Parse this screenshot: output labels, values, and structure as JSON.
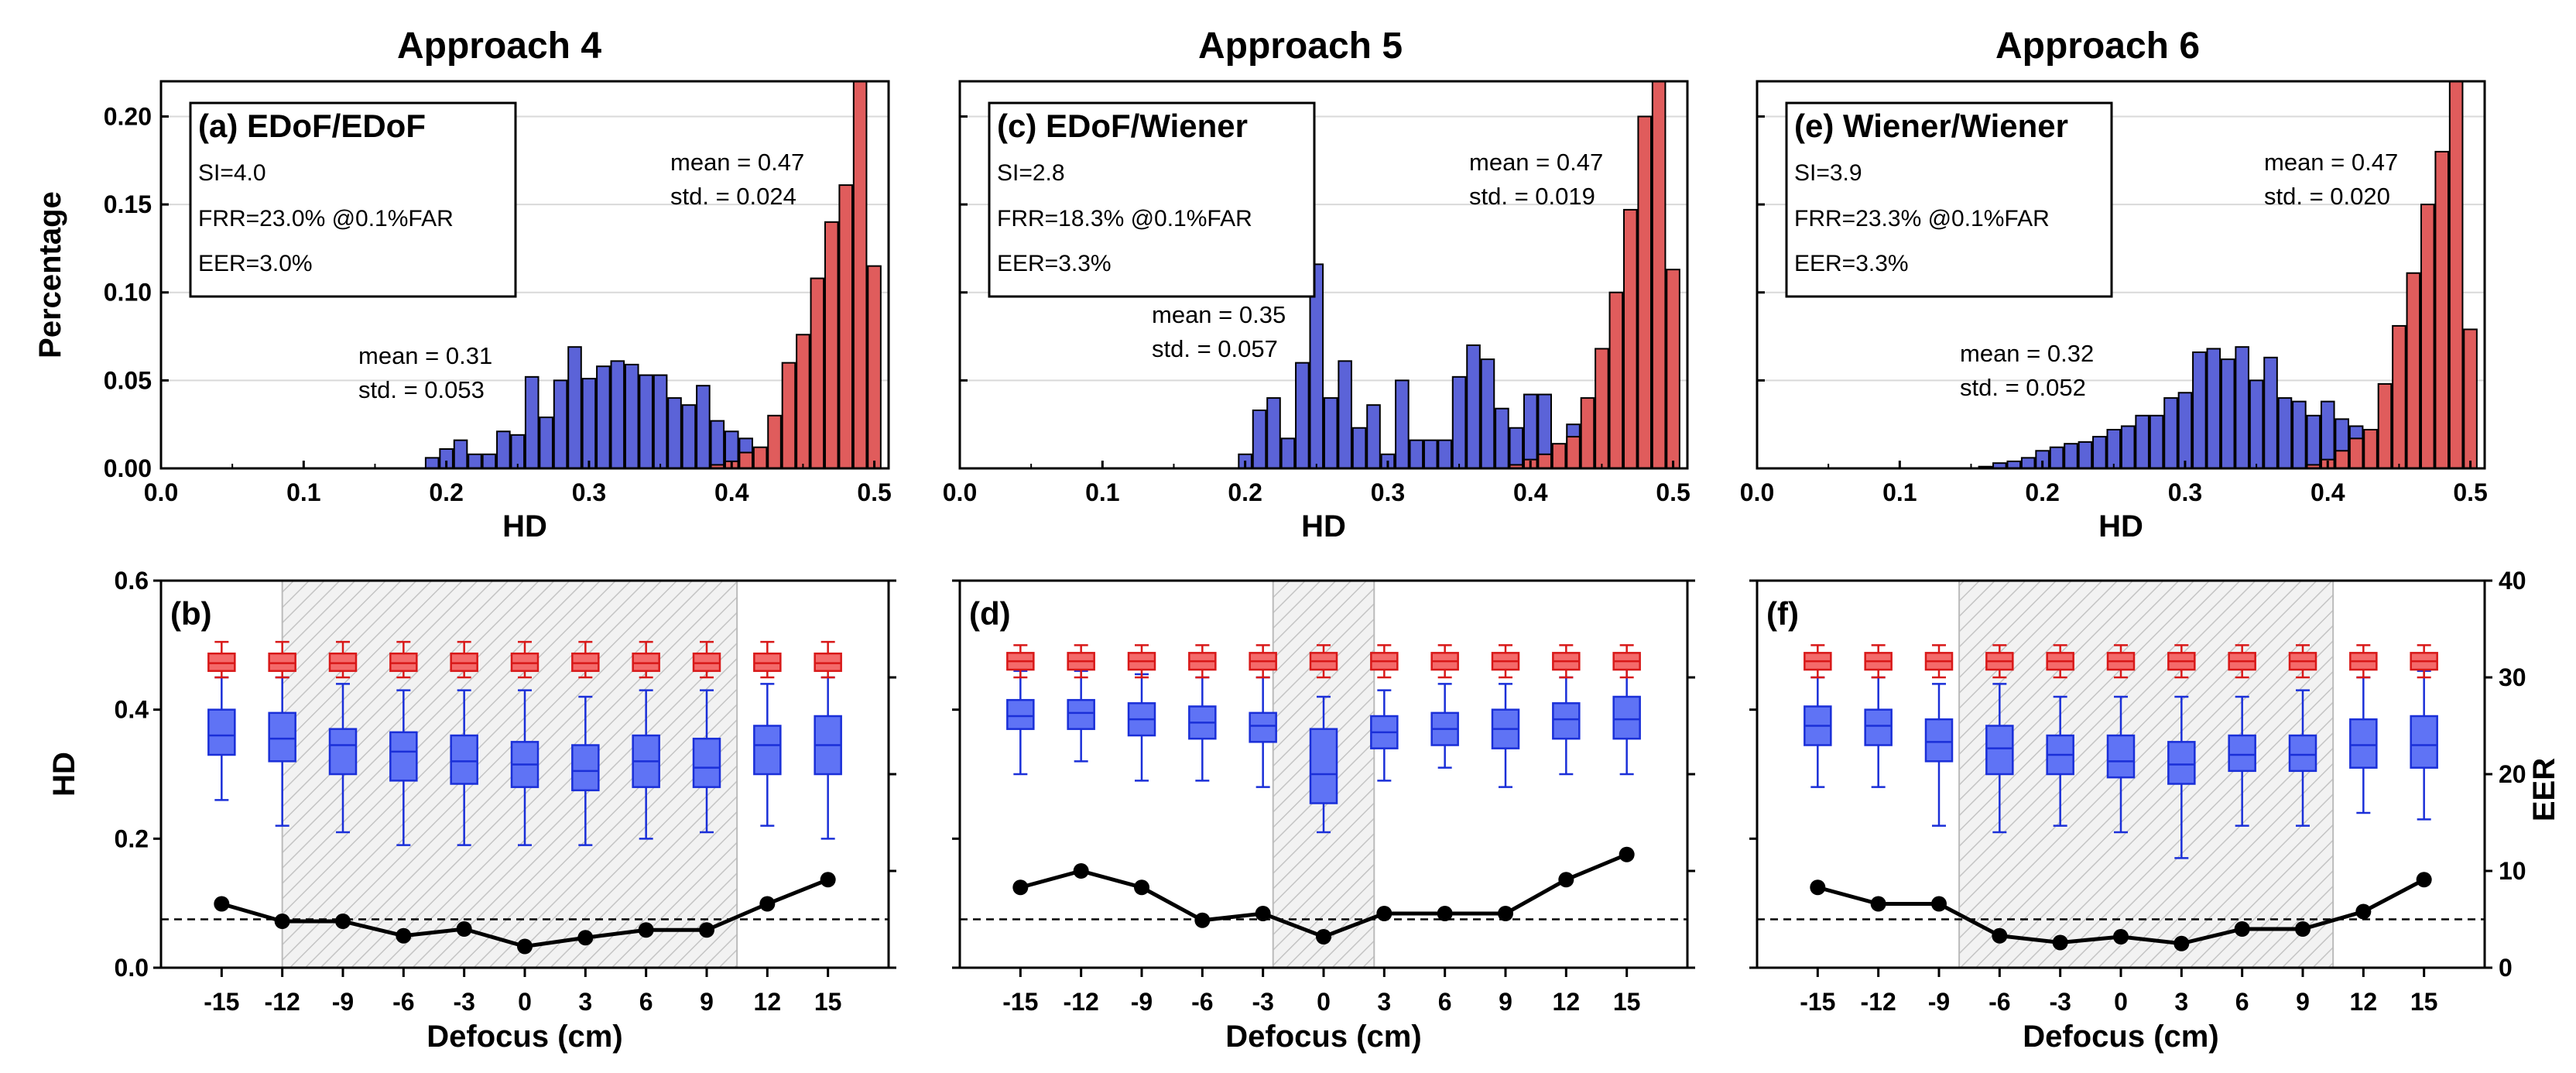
{
  "colors": {
    "genuine": "#5b63d8",
    "impostor": "#e05c5c",
    "box_blue": "#4b5ef0",
    "box_red": "#f04848",
    "line": "#000000"
  },
  "chart_data": [
    {
      "type": "bar",
      "id": "p1",
      "title": "Approach 4",
      "panel_label": "(a) EDoF/EDoF",
      "box_lines": [
        "SI=4.0",
        "FRR=23.0% @0.1%FAR",
        "EER=3.0%"
      ],
      "xlabel": "HD",
      "ylabel": "Percentage",
      "xlim": [
        0,
        0.51
      ],
      "ylim": [
        0,
        0.22
      ],
      "xticks": [
        "0.0",
        "0.1",
        "0.2",
        "0.3",
        "0.4",
        "0.5"
      ],
      "yticks": [
        "0.00",
        "0.05",
        "0.10",
        "0.15",
        "0.20"
      ],
      "genuine_stats": [
        "mean = 0.31",
        "std. = 0.053"
      ],
      "impostor_stats": [
        "mean = 0.47",
        "std. = 0.024"
      ],
      "genuine": {
        "x": [
          0.19,
          0.2,
          0.21,
          0.22,
          0.23,
          0.24,
          0.25,
          0.26,
          0.27,
          0.28,
          0.29,
          0.3,
          0.31,
          0.32,
          0.33,
          0.34,
          0.35,
          0.36,
          0.37,
          0.38,
          0.39,
          0.4,
          0.41,
          0.42,
          0.43
        ],
        "values": [
          0.006,
          0.011,
          0.016,
          0.008,
          0.008,
          0.021,
          0.019,
          0.052,
          0.029,
          0.05,
          0.069,
          0.051,
          0.058,
          0.061,
          0.059,
          0.053,
          0.053,
          0.04,
          0.036,
          0.047,
          0.027,
          0.021,
          0.017,
          0.006,
          0.002
        ]
      },
      "impostor": {
        "x": [
          0.39,
          0.4,
          0.41,
          0.42,
          0.43,
          0.44,
          0.45,
          0.46,
          0.47,
          0.48,
          0.49,
          0.5
        ],
        "values": [
          0.002,
          0.004,
          0.009,
          0.012,
          0.03,
          0.06,
          0.076,
          0.108,
          0.14,
          0.161,
          0.22,
          0.115
        ]
      }
    },
    {
      "type": "bar",
      "id": "p2",
      "title": "Approach 5",
      "panel_label": "(c) EDoF/Wiener",
      "box_lines": [
        "SI=2.8",
        "FRR=18.3% @0.1%FAR",
        "EER=3.3%"
      ],
      "xlabel": "HD",
      "ylabel": "",
      "xlim": [
        0,
        0.51
      ],
      "ylim": [
        0,
        0.22
      ],
      "xticks": [
        "0.0",
        "0.1",
        "0.2",
        "0.3",
        "0.4",
        "0.5"
      ],
      "yticks": [],
      "genuine_stats": [
        "mean = 0.35",
        "std. = 0.057"
      ],
      "impostor_stats": [
        "mean = 0.47",
        "std. = 0.019"
      ],
      "genuine": {
        "x": [
          0.2,
          0.21,
          0.22,
          0.23,
          0.24,
          0.25,
          0.26,
          0.27,
          0.28,
          0.29,
          0.3,
          0.31,
          0.32,
          0.33,
          0.34,
          0.35,
          0.36,
          0.37,
          0.38,
          0.39,
          0.4,
          0.41,
          0.42,
          0.43,
          0.44
        ],
        "values": [
          0.008,
          0.033,
          0.04,
          0.017,
          0.06,
          0.116,
          0.04,
          0.061,
          0.023,
          0.036,
          0.008,
          0.05,
          0.016,
          0.016,
          0.016,
          0.052,
          0.07,
          0.062,
          0.034,
          0.023,
          0.042,
          0.042,
          0.012,
          0.025,
          0.015
        ]
      },
      "impostor": {
        "x": [
          0.39,
          0.4,
          0.41,
          0.42,
          0.43,
          0.44,
          0.45,
          0.46,
          0.47,
          0.48,
          0.49,
          0.5
        ],
        "values": [
          0.002,
          0.005,
          0.008,
          0.014,
          0.018,
          0.04,
          0.068,
          0.1,
          0.147,
          0.2,
          0.22,
          0.113
        ]
      }
    },
    {
      "type": "bar",
      "id": "p3",
      "title": "Approach 6",
      "panel_label": "(e) Wiener/Wiener",
      "box_lines": [
        "SI=3.9",
        "FRR=23.3% @0.1%FAR",
        "EER=3.3%"
      ],
      "xlabel": "HD",
      "ylabel": "",
      "xlim": [
        0,
        0.51
      ],
      "ylim": [
        0,
        0.22
      ],
      "xticks": [
        "0.0",
        "0.1",
        "0.2",
        "0.3",
        "0.4",
        "0.5"
      ],
      "yticks": [],
      "genuine_stats": [
        "mean = 0.32",
        "std. = 0.052"
      ],
      "impostor_stats": [
        "mean = 0.47",
        "std. = 0.020"
      ],
      "genuine": {
        "x": [
          0.16,
          0.17,
          0.18,
          0.19,
          0.2,
          0.21,
          0.22,
          0.23,
          0.24,
          0.25,
          0.26,
          0.27,
          0.28,
          0.29,
          0.3,
          0.31,
          0.32,
          0.33,
          0.34,
          0.35,
          0.36,
          0.37,
          0.38,
          0.39,
          0.4,
          0.41,
          0.42,
          0.43,
          0.44
        ],
        "values": [
          0.001,
          0.003,
          0.004,
          0.006,
          0.01,
          0.012,
          0.014,
          0.015,
          0.018,
          0.022,
          0.024,
          0.03,
          0.03,
          0.04,
          0.043,
          0.066,
          0.068,
          0.062,
          0.069,
          0.05,
          0.063,
          0.04,
          0.038,
          0.03,
          0.038,
          0.028,
          0.024,
          0.016,
          0.006
        ]
      },
      "impostor": {
        "x": [
          0.39,
          0.4,
          0.41,
          0.42,
          0.43,
          0.44,
          0.45,
          0.46,
          0.47,
          0.48,
          0.49,
          0.5
        ],
        "values": [
          0.002,
          0.005,
          0.01,
          0.017,
          0.022,
          0.048,
          0.081,
          0.111,
          0.15,
          0.18,
          0.22,
          0.079
        ]
      }
    },
    {
      "type": "box",
      "id": "p4",
      "panel_label": "(b)",
      "xlabel": "Defocus (cm)",
      "ylabel": "HD",
      "y2label": "",
      "categories": [
        "-15",
        "-12",
        "-9",
        "-6",
        "-3",
        "0",
        "3",
        "6",
        "9",
        "12",
        "15"
      ],
      "ylim": [
        0,
        0.6
      ],
      "yticks": [
        "0.0",
        "0.2",
        "0.4",
        "0.6"
      ],
      "y2lim": [
        0,
        40
      ],
      "y2ticks": [],
      "eer_threshold": 5,
      "shaded_range": [
        -12,
        10.5
      ],
      "impostor_box": {
        "median": 0.472,
        "q1": 0.46,
        "q3": 0.487,
        "lo": 0.45,
        "hi": 0.505
      },
      "genuine_boxes": [
        {
          "median": 0.36,
          "q1": 0.33,
          "q3": 0.4,
          "lo": 0.26,
          "hi": 0.45
        },
        {
          "median": 0.355,
          "q1": 0.32,
          "q3": 0.395,
          "lo": 0.22,
          "hi": 0.45
        },
        {
          "median": 0.345,
          "q1": 0.3,
          "q3": 0.37,
          "lo": 0.21,
          "hi": 0.44
        },
        {
          "median": 0.335,
          "q1": 0.29,
          "q3": 0.365,
          "lo": 0.19,
          "hi": 0.43
        },
        {
          "median": 0.32,
          "q1": 0.285,
          "q3": 0.36,
          "lo": 0.19,
          "hi": 0.43
        },
        {
          "median": 0.315,
          "q1": 0.28,
          "q3": 0.35,
          "lo": 0.19,
          "hi": 0.43
        },
        {
          "median": 0.305,
          "q1": 0.275,
          "q3": 0.345,
          "lo": 0.19,
          "hi": 0.42
        },
        {
          "median": 0.32,
          "q1": 0.28,
          "q3": 0.36,
          "lo": 0.2,
          "hi": 0.43
        },
        {
          "median": 0.31,
          "q1": 0.28,
          "q3": 0.355,
          "lo": 0.21,
          "hi": 0.43
        },
        {
          "median": 0.345,
          "q1": 0.3,
          "q3": 0.375,
          "lo": 0.22,
          "hi": 0.44
        },
        {
          "median": 0.345,
          "q1": 0.3,
          "q3": 0.39,
          "lo": 0.2,
          "hi": 0.45
        }
      ],
      "eer": [
        6.6,
        4.8,
        4.8,
        3.3,
        4.0,
        2.2,
        3.1,
        3.9,
        3.9,
        6.6,
        9.1
      ]
    },
    {
      "type": "box",
      "id": "p5",
      "panel_label": "(d)",
      "xlabel": "Defocus (cm)",
      "ylabel": "",
      "y2label": "",
      "categories": [
        "-15",
        "-12",
        "-9",
        "-6",
        "-3",
        "0",
        "3",
        "6",
        "9",
        "12",
        "15"
      ],
      "ylim": [
        0,
        0.6
      ],
      "yticks": [],
      "y2lim": [
        0,
        40
      ],
      "y2ticks": [],
      "eer_threshold": 5,
      "shaded_range": [
        -2.5,
        2.5
      ],
      "impostor_box": {
        "median": 0.475,
        "q1": 0.462,
        "q3": 0.488,
        "lo": 0.45,
        "hi": 0.5
      },
      "genuine_boxes": [
        {
          "median": 0.39,
          "q1": 0.37,
          "q3": 0.415,
          "lo": 0.3,
          "hi": 0.46
        },
        {
          "median": 0.395,
          "q1": 0.37,
          "q3": 0.415,
          "lo": 0.32,
          "hi": 0.46
        },
        {
          "median": 0.385,
          "q1": 0.36,
          "q3": 0.41,
          "lo": 0.29,
          "hi": 0.455
        },
        {
          "median": 0.38,
          "q1": 0.355,
          "q3": 0.405,
          "lo": 0.29,
          "hi": 0.45
        },
        {
          "median": 0.375,
          "q1": 0.35,
          "q3": 0.395,
          "lo": 0.28,
          "hi": 0.45
        },
        {
          "median": 0.3,
          "q1": 0.255,
          "q3": 0.37,
          "lo": 0.21,
          "hi": 0.42
        },
        {
          "median": 0.365,
          "q1": 0.34,
          "q3": 0.39,
          "lo": 0.29,
          "hi": 0.43
        },
        {
          "median": 0.37,
          "q1": 0.345,
          "q3": 0.395,
          "lo": 0.31,
          "hi": 0.44
        },
        {
          "median": 0.37,
          "q1": 0.34,
          "q3": 0.4,
          "lo": 0.28,
          "hi": 0.44
        },
        {
          "median": 0.385,
          "q1": 0.355,
          "q3": 0.41,
          "lo": 0.3,
          "hi": 0.45
        },
        {
          "median": 0.385,
          "q1": 0.355,
          "q3": 0.42,
          "lo": 0.3,
          "hi": 0.47
        }
      ],
      "eer": [
        8.3,
        10.0,
        8.3,
        4.9,
        5.6,
        3.2,
        5.6,
        5.6,
        5.6,
        9.1,
        11.7
      ]
    },
    {
      "type": "box",
      "id": "p6",
      "panel_label": "(f)",
      "xlabel": "Defocus (cm)",
      "ylabel": "",
      "y2label": "EER",
      "categories": [
        "-15",
        "-12",
        "-9",
        "-6",
        "-3",
        "0",
        "3",
        "6",
        "9",
        "12",
        "15"
      ],
      "ylim": [
        0,
        0.6
      ],
      "yticks": [],
      "y2lim": [
        0,
        40
      ],
      "y2ticks": [
        "0",
        "10",
        "20",
        "30",
        "40"
      ],
      "eer_threshold": 5,
      "shaded_range": [
        -8,
        10.5
      ],
      "impostor_box": {
        "median": 0.475,
        "q1": 0.462,
        "q3": 0.488,
        "lo": 0.45,
        "hi": 0.5
      },
      "genuine_boxes": [
        {
          "median": 0.375,
          "q1": 0.345,
          "q3": 0.405,
          "lo": 0.28,
          "hi": 0.45
        },
        {
          "median": 0.375,
          "q1": 0.345,
          "q3": 0.4,
          "lo": 0.28,
          "hi": 0.45
        },
        {
          "median": 0.35,
          "q1": 0.32,
          "q3": 0.385,
          "lo": 0.22,
          "hi": 0.44
        },
        {
          "median": 0.34,
          "q1": 0.3,
          "q3": 0.375,
          "lo": 0.21,
          "hi": 0.44
        },
        {
          "median": 0.33,
          "q1": 0.3,
          "q3": 0.36,
          "lo": 0.22,
          "hi": 0.42
        },
        {
          "median": 0.32,
          "q1": 0.295,
          "q3": 0.36,
          "lo": 0.21,
          "hi": 0.42
        },
        {
          "median": 0.315,
          "q1": 0.285,
          "q3": 0.35,
          "lo": 0.17,
          "hi": 0.42
        },
        {
          "median": 0.33,
          "q1": 0.305,
          "q3": 0.36,
          "lo": 0.22,
          "hi": 0.42
        },
        {
          "median": 0.33,
          "q1": 0.305,
          "q3": 0.36,
          "lo": 0.22,
          "hi": 0.43
        },
        {
          "median": 0.345,
          "q1": 0.31,
          "q3": 0.385,
          "lo": 0.24,
          "hi": 0.45
        },
        {
          "median": 0.345,
          "q1": 0.31,
          "q3": 0.39,
          "lo": 0.23,
          "hi": 0.46
        }
      ],
      "eer": [
        8.3,
        6.6,
        6.6,
        3.3,
        2.6,
        3.2,
        2.5,
        4.0,
        4.0,
        5.8,
        9.1
      ]
    }
  ]
}
